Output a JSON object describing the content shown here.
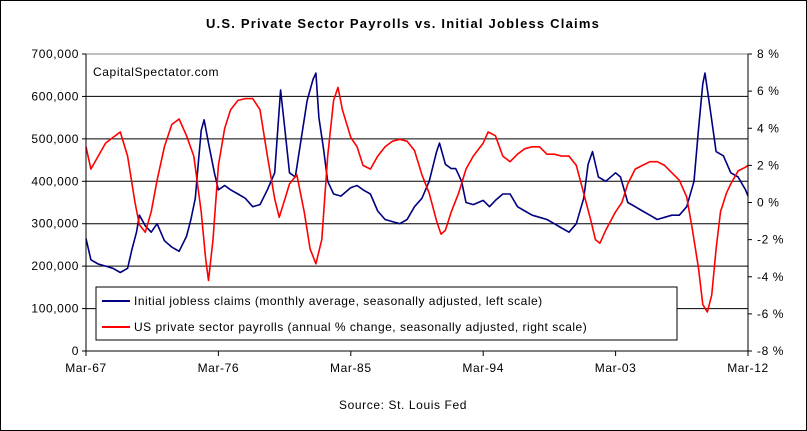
{
  "chart_data": {
    "type": "line",
    "title": "U.S. Private Sector Payrolls vs. Initial Jobless Claims",
    "watermark": "CapitalSpectator.com",
    "source": "Source: St. Louis Fed",
    "x_ticks": [
      "Mar-67",
      "Mar-76",
      "Mar-85",
      "Mar-94",
      "Mar-03",
      "Mar-12"
    ],
    "x_range": [
      1967.17,
      2012.17
    ],
    "left_axis": {
      "range": [
        0,
        700000
      ],
      "ticks": [
        "0",
        "100,000",
        "200,000",
        "300,000",
        "400,000",
        "500,000",
        "600,000",
        "700,000"
      ],
      "tick_values": [
        0,
        100000,
        200000,
        300000,
        400000,
        500000,
        600000,
        700000
      ]
    },
    "right_axis": {
      "range": [
        -8,
        8
      ],
      "ticks": [
        "-8 %",
        "-6 %",
        "-4 %",
        "-2 %",
        "0 %",
        "2 %",
        "4 %",
        "6 %",
        "8 %"
      ],
      "tick_values": [
        -8,
        -6,
        -4,
        -2,
        0,
        2,
        4,
        6,
        8
      ]
    },
    "grid": "horizontal",
    "legend_position": "bottom-left",
    "series": [
      {
        "name": "Initial jobless claims (monthly average, seasonally adjusted, left scale)",
        "axis": "left",
        "color": "#000080",
        "points": [
          [
            1967.17,
            265000
          ],
          [
            1967.5,
            215000
          ],
          [
            1968.0,
            205000
          ],
          [
            1968.5,
            200000
          ],
          [
            1969.0,
            195000
          ],
          [
            1969.5,
            185000
          ],
          [
            1970.0,
            195000
          ],
          [
            1970.3,
            240000
          ],
          [
            1970.6,
            280000
          ],
          [
            1970.8,
            320000
          ],
          [
            1971.2,
            295000
          ],
          [
            1971.6,
            280000
          ],
          [
            1972.0,
            300000
          ],
          [
            1972.5,
            260000
          ],
          [
            1973.0,
            245000
          ],
          [
            1973.5,
            235000
          ],
          [
            1974.0,
            270000
          ],
          [
            1974.3,
            310000
          ],
          [
            1974.6,
            360000
          ],
          [
            1974.8,
            440000
          ],
          [
            1975.0,
            520000
          ],
          [
            1975.2,
            545000
          ],
          [
            1975.5,
            490000
          ],
          [
            1975.9,
            420000
          ],
          [
            1976.17,
            380000
          ],
          [
            1976.6,
            390000
          ],
          [
            1977.0,
            380000
          ],
          [
            1977.5,
            370000
          ],
          [
            1978.0,
            360000
          ],
          [
            1978.5,
            340000
          ],
          [
            1979.0,
            345000
          ],
          [
            1979.5,
            380000
          ],
          [
            1980.0,
            420000
          ],
          [
            1980.2,
            520000
          ],
          [
            1980.4,
            615000
          ],
          [
            1980.7,
            520000
          ],
          [
            1981.0,
            420000
          ],
          [
            1981.4,
            410000
          ],
          [
            1981.8,
            500000
          ],
          [
            1982.2,
            590000
          ],
          [
            1982.6,
            640000
          ],
          [
            1982.8,
            655000
          ],
          [
            1983.0,
            550000
          ],
          [
            1983.3,
            480000
          ],
          [
            1983.6,
            400000
          ],
          [
            1984.0,
            370000
          ],
          [
            1984.5,
            365000
          ],
          [
            1985.17,
            385000
          ],
          [
            1985.6,
            390000
          ],
          [
            1986.0,
            380000
          ],
          [
            1986.5,
            370000
          ],
          [
            1987.0,
            330000
          ],
          [
            1987.5,
            310000
          ],
          [
            1988.0,
            305000
          ],
          [
            1988.5,
            300000
          ],
          [
            1989.0,
            310000
          ],
          [
            1989.5,
            340000
          ],
          [
            1990.0,
            360000
          ],
          [
            1990.5,
            400000
          ],
          [
            1991.0,
            470000
          ],
          [
            1991.2,
            490000
          ],
          [
            1991.6,
            440000
          ],
          [
            1992.0,
            430000
          ],
          [
            1992.3,
            430000
          ],
          [
            1992.7,
            400000
          ],
          [
            1993.0,
            350000
          ],
          [
            1993.5,
            345000
          ],
          [
            1994.17,
            355000
          ],
          [
            1994.6,
            340000
          ],
          [
            1995.0,
            355000
          ],
          [
            1995.5,
            370000
          ],
          [
            1996.0,
            370000
          ],
          [
            1996.5,
            340000
          ],
          [
            1997.0,
            330000
          ],
          [
            1997.5,
            320000
          ],
          [
            1998.0,
            315000
          ],
          [
            1998.5,
            310000
          ],
          [
            1999.0,
            300000
          ],
          [
            1999.5,
            290000
          ],
          [
            2000.0,
            280000
          ],
          [
            2000.5,
            300000
          ],
          [
            2001.0,
            360000
          ],
          [
            2001.3,
            440000
          ],
          [
            2001.6,
            470000
          ],
          [
            2002.0,
            410000
          ],
          [
            2002.5,
            400000
          ],
          [
            2003.17,
            420000
          ],
          [
            2003.5,
            410000
          ],
          [
            2004.0,
            350000
          ],
          [
            2004.5,
            340000
          ],
          [
            2005.0,
            330000
          ],
          [
            2005.5,
            320000
          ],
          [
            2006.0,
            310000
          ],
          [
            2006.5,
            315000
          ],
          [
            2007.0,
            320000
          ],
          [
            2007.5,
            320000
          ],
          [
            2008.0,
            340000
          ],
          [
            2008.5,
            400000
          ],
          [
            2008.8,
            520000
          ],
          [
            2009.1,
            630000
          ],
          [
            2009.25,
            655000
          ],
          [
            2009.6,
            570000
          ],
          [
            2010.0,
            470000
          ],
          [
            2010.5,
            460000
          ],
          [
            2011.0,
            420000
          ],
          [
            2011.5,
            410000
          ],
          [
            2012.0,
            380000
          ],
          [
            2012.17,
            365000
          ]
        ]
      },
      {
        "name": "US private sector payrolls (annual % change, seasonally adjusted, right scale)",
        "axis": "right",
        "color": "#ff0000",
        "points": [
          [
            1967.17,
            3.0
          ],
          [
            1967.5,
            1.8
          ],
          [
            1968.0,
            2.5
          ],
          [
            1968.5,
            3.2
          ],
          [
            1969.0,
            3.5
          ],
          [
            1969.5,
            3.8
          ],
          [
            1970.0,
            2.5
          ],
          [
            1970.5,
            0.0
          ],
          [
            1970.8,
            -1.2
          ],
          [
            1971.2,
            -1.6
          ],
          [
            1971.6,
            -0.5
          ],
          [
            1972.0,
            1.2
          ],
          [
            1972.5,
            3.0
          ],
          [
            1973.0,
            4.2
          ],
          [
            1973.5,
            4.5
          ],
          [
            1974.0,
            3.6
          ],
          [
            1974.5,
            2.5
          ],
          [
            1975.0,
            -0.5
          ],
          [
            1975.3,
            -3.0
          ],
          [
            1975.5,
            -4.2
          ],
          [
            1975.8,
            -2.0
          ],
          [
            1976.17,
            2.0
          ],
          [
            1976.6,
            4.0
          ],
          [
            1977.0,
            5.0
          ],
          [
            1977.5,
            5.5
          ],
          [
            1978.0,
            5.6
          ],
          [
            1978.5,
            5.6
          ],
          [
            1979.0,
            5.0
          ],
          [
            1979.5,
            2.5
          ],
          [
            1980.0,
            0.2
          ],
          [
            1980.3,
            -0.8
          ],
          [
            1980.7,
            0.2
          ],
          [
            1981.0,
            1.0
          ],
          [
            1981.5,
            1.5
          ],
          [
            1982.0,
            -0.5
          ],
          [
            1982.4,
            -2.5
          ],
          [
            1982.8,
            -3.3
          ],
          [
            1983.2,
            -2.0
          ],
          [
            1983.6,
            2.5
          ],
          [
            1984.0,
            5.5
          ],
          [
            1984.3,
            6.2
          ],
          [
            1984.6,
            5.0
          ],
          [
            1985.17,
            3.5
          ],
          [
            1985.6,
            3.0
          ],
          [
            1986.0,
            2.0
          ],
          [
            1986.5,
            1.8
          ],
          [
            1987.0,
            2.5
          ],
          [
            1987.5,
            3.0
          ],
          [
            1988.0,
            3.3
          ],
          [
            1988.5,
            3.4
          ],
          [
            1989.0,
            3.3
          ],
          [
            1989.5,
            2.8
          ],
          [
            1990.0,
            1.5
          ],
          [
            1990.5,
            0.5
          ],
          [
            1991.0,
            -1.0
          ],
          [
            1991.3,
            -1.7
          ],
          [
            1991.6,
            -1.5
          ],
          [
            1992.0,
            -0.5
          ],
          [
            1992.5,
            0.5
          ],
          [
            1993.0,
            1.8
          ],
          [
            1993.5,
            2.5
          ],
          [
            1994.17,
            3.2
          ],
          [
            1994.5,
            3.8
          ],
          [
            1995.0,
            3.6
          ],
          [
            1995.5,
            2.5
          ],
          [
            1996.0,
            2.2
          ],
          [
            1996.5,
            2.6
          ],
          [
            1997.0,
            2.9
          ],
          [
            1997.5,
            3.0
          ],
          [
            1998.0,
            3.0
          ],
          [
            1998.5,
            2.6
          ],
          [
            1999.0,
            2.6
          ],
          [
            1999.5,
            2.5
          ],
          [
            2000.0,
            2.5
          ],
          [
            2000.5,
            2.0
          ],
          [
            2001.0,
            0.5
          ],
          [
            2001.5,
            -1.0
          ],
          [
            2001.8,
            -2.0
          ],
          [
            2002.1,
            -2.2
          ],
          [
            2002.5,
            -1.5
          ],
          [
            2003.17,
            -0.5
          ],
          [
            2003.6,
            0.0
          ],
          [
            2004.0,
            1.0
          ],
          [
            2004.5,
            1.8
          ],
          [
            2005.0,
            2.0
          ],
          [
            2005.5,
            2.2
          ],
          [
            2006.0,
            2.2
          ],
          [
            2006.5,
            2.0
          ],
          [
            2007.0,
            1.6
          ],
          [
            2007.5,
            1.2
          ],
          [
            2008.0,
            0.3
          ],
          [
            2008.4,
            -1.5
          ],
          [
            2008.8,
            -3.5
          ],
          [
            2009.1,
            -5.5
          ],
          [
            2009.4,
            -5.9
          ],
          [
            2009.7,
            -5.0
          ],
          [
            2010.0,
            -2.5
          ],
          [
            2010.3,
            -0.5
          ],
          [
            2010.7,
            0.5
          ],
          [
            2011.0,
            1.0
          ],
          [
            2011.5,
            1.7
          ],
          [
            2012.0,
            1.9
          ],
          [
            2012.17,
            2.0
          ]
        ]
      }
    ]
  }
}
